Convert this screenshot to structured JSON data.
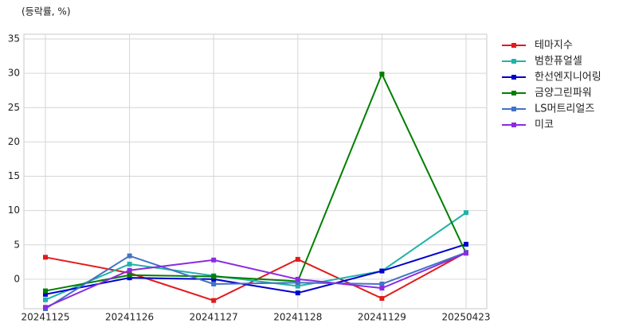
{
  "chart_data": {
    "type": "line",
    "y_label": "(등락률, %)",
    "categories": [
      "20241125",
      "20241126",
      "20241127",
      "20241128",
      "20241129",
      "20250423"
    ],
    "ylim": [
      -4.3,
      35.7
    ],
    "yticks": [
      0,
      5,
      10,
      15,
      20,
      25,
      30,
      35
    ],
    "grid": true,
    "legend": "outside-right",
    "series": [
      {
        "name": "테마지수",
        "color": "#e31a1c",
        "values": [
          3.2,
          0.9,
          -3.1,
          2.9,
          -2.8,
          3.9
        ]
      },
      {
        "name": "범한퓨얼셀",
        "color": "#20b2aa",
        "values": [
          -3.0,
          2.2,
          0.5,
          -1.0,
          1.2,
          9.7
        ]
      },
      {
        "name": "한선엔지니어링",
        "color": "#0000cd",
        "values": [
          -2.2,
          0.2,
          0.0,
          -2.0,
          1.2,
          5.1
        ]
      },
      {
        "name": "금양그린파워",
        "color": "#007f00",
        "values": [
          -1.7,
          0.6,
          0.4,
          -0.3,
          29.9,
          3.8
        ]
      },
      {
        "name": "LS머트리얼즈",
        "color": "#4472c4",
        "values": [
          -4.3,
          3.4,
          -0.7,
          -0.5,
          -0.7,
          3.9
        ]
      },
      {
        "name": "미코",
        "color": "#8a2be2",
        "values": [
          -4.1,
          1.3,
          2.8,
          0.0,
          -1.3,
          3.8
        ]
      }
    ]
  }
}
